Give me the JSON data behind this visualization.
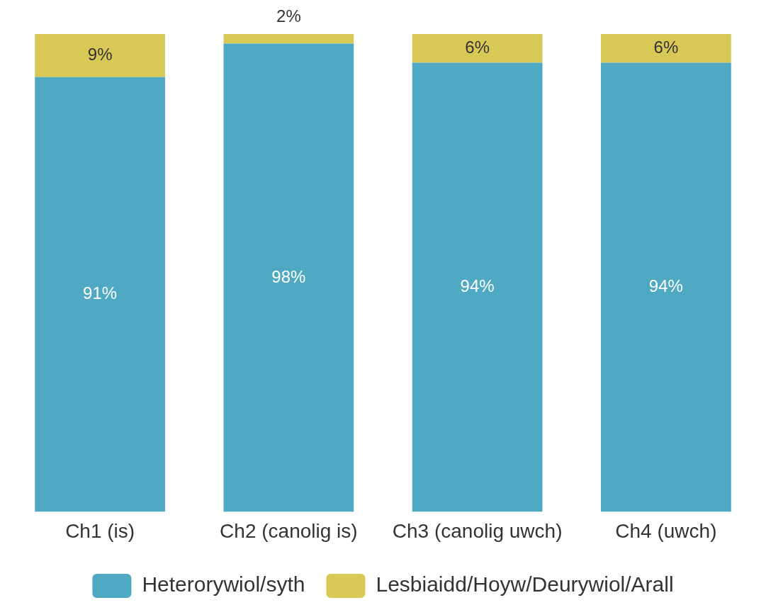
{
  "chart_data": {
    "type": "bar",
    "stacked": true,
    "categories": [
      "Ch1 (is)",
      "Ch2 (canolig is)",
      "Ch3 (canolig uwch)",
      "Ch4 (uwch)"
    ],
    "series": [
      {
        "name": "Heterorywiol/syth",
        "color": "#4fa9c2",
        "values": [
          91,
          98,
          94,
          94
        ],
        "value_labels": [
          "91%",
          "98%",
          "94%",
          "94%"
        ]
      },
      {
        "name": "Lesbiaidd/Hoyw/Deurywiol/Arall",
        "color": "#d8c956",
        "values": [
          9,
          2,
          6,
          6
        ],
        "value_labels": [
          "9%",
          "2%",
          "6%",
          "6%"
        ]
      }
    ],
    "tick_labels": "x",
    "grid": false,
    "legend": "bottom"
  }
}
